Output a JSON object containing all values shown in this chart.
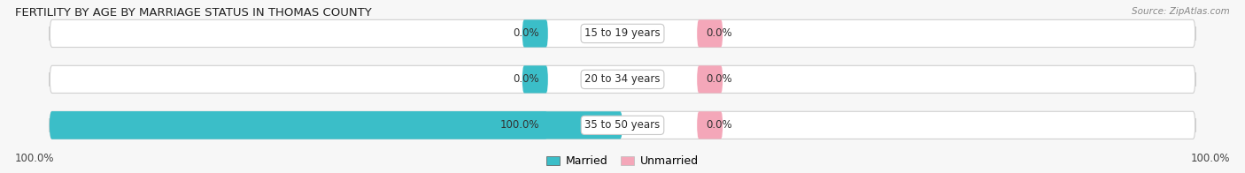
{
  "title": "FERTILITY BY AGE BY MARRIAGE STATUS IN THOMAS COUNTY",
  "source": "Source: ZipAtlas.com",
  "categories": [
    "15 to 19 years",
    "20 to 34 years",
    "35 to 50 years"
  ],
  "married_values": [
    0.0,
    0.0,
    100.0
  ],
  "unmarried_values": [
    0.0,
    0.0,
    0.0
  ],
  "married_color": "#3bbec8",
  "unmarried_color": "#f4a7b9",
  "bar_bg_left_color": "#e8eef0",
  "bar_bg_right_color": "#f5f0f2",
  "label_fontsize": 8.5,
  "title_fontsize": 9.5,
  "source_fontsize": 7.5,
  "legend_fontsize": 9,
  "left_axis_label": "100.0%",
  "right_axis_label": "100.0%",
  "max_val": 100.0,
  "small_bar_width": 4.5,
  "fig_bg": "#f7f7f7",
  "bar_bg_color": "#ebebeb"
}
